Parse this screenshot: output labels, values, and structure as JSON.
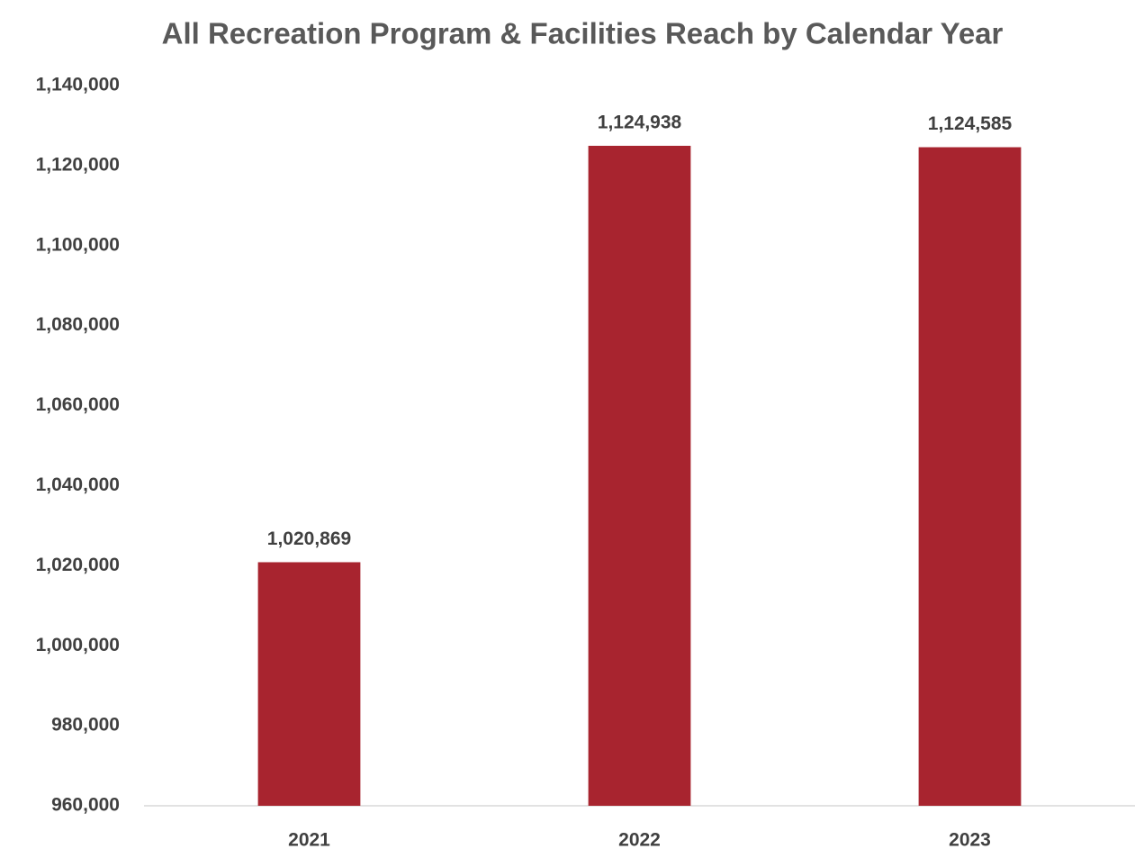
{
  "chart_data": {
    "type": "bar",
    "title": "All Recreation Program & Facilities Reach by Calendar Year",
    "categories": [
      "2021",
      "2022",
      "2023"
    ],
    "values": [
      1020869,
      1124938,
      1124585
    ],
    "value_labels": [
      "1,020,869",
      "1,124,938",
      "1,124,585"
    ],
    "color": "#a8242f",
    "ylim": [
      960000,
      1140000
    ],
    "yticks": [
      {
        "value": 960000,
        "label": "960,000"
      },
      {
        "value": 980000,
        "label": "980,000"
      },
      {
        "value": 1000000,
        "label": "1,000,000"
      },
      {
        "value": 1020000,
        "label": "1,020,000"
      },
      {
        "value": 1040000,
        "label": "1,040,000"
      },
      {
        "value": 1060000,
        "label": "1,060,000"
      },
      {
        "value": 1080000,
        "label": "1,080,000"
      },
      {
        "value": 1100000,
        "label": "1,100,000"
      },
      {
        "value": 1120000,
        "label": "1,120,000"
      },
      {
        "value": 1140000,
        "label": "1,140,000"
      }
    ],
    "grid": false
  }
}
